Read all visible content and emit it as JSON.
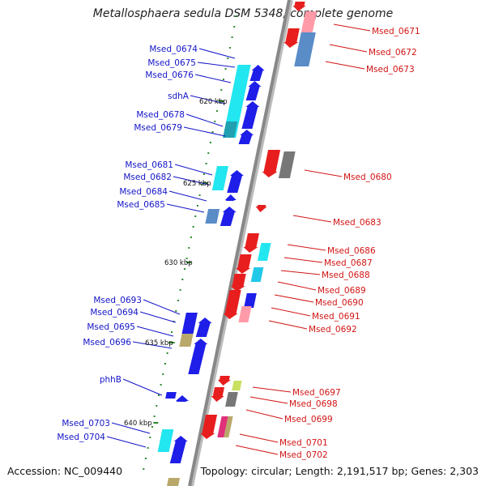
{
  "title": "Metallosphaera sedula DSM 5348, complete genome",
  "accession": "Accession: NC_009440",
  "summary": "Topology: circular; Length: 2,191,517 bp; Genes: 2,303",
  "colors": {
    "left_label": "#1414c8",
    "right_label": "#d21414",
    "backbone": "#888888",
    "tick": "#2a8a2a"
  },
  "kbp_marks": [
    "620 kbp",
    "625 kbp",
    "630 kbp",
    "635 kbp",
    "640 kbp"
  ],
  "left_labels": [
    "Msed_0674",
    "Msed_0675",
    "Msed_0676",
    "sdhA",
    "Msed_0678",
    "Msed_0679",
    "Msed_0681",
    "Msed_0682",
    "Msed_0684",
    "Msed_0685",
    "Msed_0693",
    "Msed_0694",
    "Msed_0695",
    "Msed_0696",
    "phhB",
    "Msed_0703",
    "Msed_0704"
  ],
  "right_labels": [
    "Msed_0671",
    "Msed_0672",
    "Msed_0673",
    "Msed_0680",
    "Msed_0683",
    "Msed_0686",
    "Msed_0687",
    "Msed_0688",
    "Msed_0689",
    "Msed_0690",
    "Msed_0691",
    "Msed_0692",
    "Msed_0697",
    "Msed_0698",
    "Msed_0699",
    "Msed_0701",
    "Msed_0702"
  ]
}
